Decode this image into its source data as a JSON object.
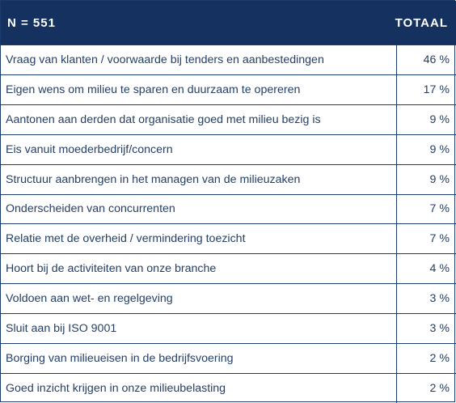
{
  "table": {
    "header": {
      "label": "N = 551",
      "value": "TOTAAL"
    },
    "rows": [
      {
        "label": "Vraag van klanten / voorwaarde bij tenders en aanbestedingen",
        "value": "46 %"
      },
      {
        "label": "Eigen wens om milieu te sparen en duurzaam te opereren",
        "value": "17 %"
      },
      {
        "label": "Aantonen aan derden dat organisatie goed met milieu bezig is",
        "value": "9 %"
      },
      {
        "label": "Eis vanuit moederbedrijf/concern",
        "value": "9 %"
      },
      {
        "label": "Structuur aanbrengen in het managen van de milieuzaken",
        "value": "9 %"
      },
      {
        "label": "Onderscheiden van concurrenten",
        "value": "7 %"
      },
      {
        "label": "Relatie met de overheid / vermindering toezicht",
        "value": "7 %"
      },
      {
        "label": "Hoort bij de activiteiten van onze branche",
        "value": "4 %"
      },
      {
        "label": "Voldoen aan wet- en regelgeving",
        "value": "3 %"
      },
      {
        "label": "Sluit aan bij ISO 9001",
        "value": "3 %"
      },
      {
        "label": "Borging van milieueisen in de bedrijfsvoering",
        "value": "2 %"
      },
      {
        "label": "Goed inzicht krijgen in onze milieubelasting",
        "value": "2 %"
      }
    ]
  }
}
